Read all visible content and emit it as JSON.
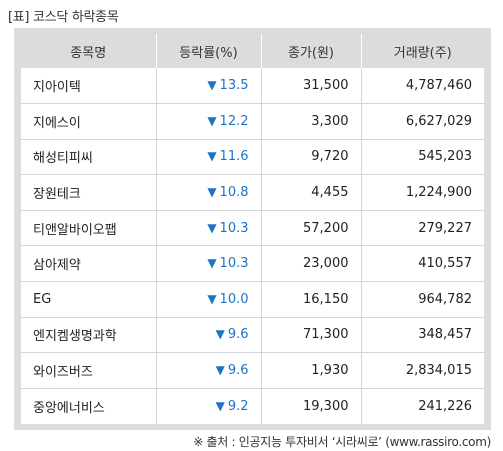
{
  "caption": "[표] 코스닥 하락종목",
  "headers": [
    "종목명",
    "등락률(%)",
    "종가(원)",
    "거래량(주)"
  ],
  "down_marker": "▼",
  "rows": [
    {
      "name": "지아이텍",
      "change": "13.5",
      "price": "31,500",
      "volume": "4,787,460"
    },
    {
      "name": "지에스이",
      "change": "12.2",
      "price": "3,300",
      "volume": "6,627,029"
    },
    {
      "name": "해성티피씨",
      "change": "11.6",
      "price": "9,720",
      "volume": "545,203"
    },
    {
      "name": "장원테크",
      "change": "10.8",
      "price": "4,455",
      "volume": "1,224,900"
    },
    {
      "name": "티앤알바이오팹",
      "change": "10.3",
      "price": "57,200",
      "volume": "279,227"
    },
    {
      "name": "삼아제약",
      "change": "10.3",
      "price": "23,000",
      "volume": "410,557"
    },
    {
      "name": "EG",
      "change": "10.0",
      "price": "16,150",
      "volume": "964,782"
    },
    {
      "name": "엔지켐생명과학",
      "change": "9.6",
      "price": "71,300",
      "volume": "348,457"
    },
    {
      "name": "와이즈버즈",
      "change": "9.6",
      "price": "1,930",
      "volume": "2,834,015"
    },
    {
      "name": "중앙에너비스",
      "change": "9.2",
      "price": "19,300",
      "volume": "241,226"
    }
  ],
  "source": "※ 출처 : 인공지능 투자비서 ‘시라씨로’ (www.rassiro.com)",
  "colors": {
    "down": "#1f73c7",
    "header_bg": "#dcdcdc"
  }
}
